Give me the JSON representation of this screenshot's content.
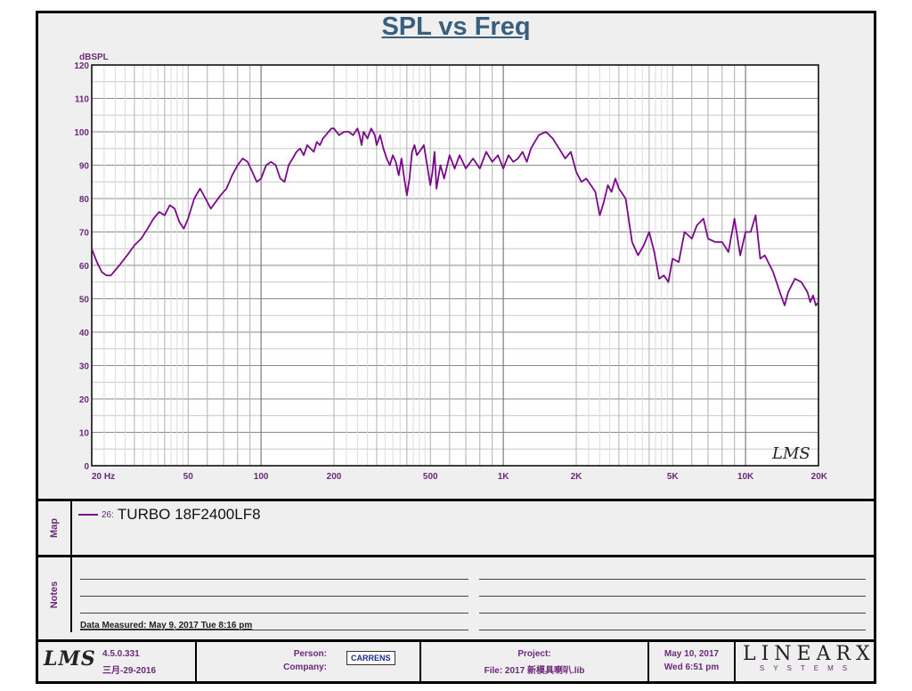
{
  "chart_data": {
    "type": "line",
    "title": "SPL vs Freq",
    "ylabel": "dBSPL",
    "xlabel": "",
    "x_scale": "log",
    "xlim": [
      20,
      20000
    ],
    "ylim": [
      0,
      120
    ],
    "y_ticks": [
      "0",
      "10",
      "20",
      "30",
      "40",
      "50",
      "60",
      "70",
      "80",
      "90",
      "100",
      "110",
      "120"
    ],
    "x_ticks": [
      {
        "value": 20,
        "label": "20  Hz"
      },
      {
        "value": 50,
        "label": "50"
      },
      {
        "value": 100,
        "label": "100"
      },
      {
        "value": 200,
        "label": "200"
      },
      {
        "value": 500,
        "label": "500"
      },
      {
        "value": 1000,
        "label": "1K"
      },
      {
        "value": 2000,
        "label": "2K"
      },
      {
        "value": 5000,
        "label": "5K"
      },
      {
        "value": 10000,
        "label": "10K"
      },
      {
        "value": 20000,
        "label": "20K"
      }
    ],
    "grid": true,
    "series": [
      {
        "name": "TURBO 18F2400LF8",
        "color": "#7a0a8a",
        "points": [
          [
            20,
            65
          ],
          [
            21,
            61
          ],
          [
            22,
            58
          ],
          [
            23,
            57
          ],
          [
            24,
            57
          ],
          [
            26,
            60
          ],
          [
            28,
            63
          ],
          [
            30,
            66
          ],
          [
            32,
            68
          ],
          [
            34,
            71
          ],
          [
            36,
            74
          ],
          [
            38,
            76
          ],
          [
            40,
            75
          ],
          [
            42,
            78
          ],
          [
            44,
            77
          ],
          [
            46,
            73
          ],
          [
            48,
            71
          ],
          [
            50,
            74
          ],
          [
            53,
            80
          ],
          [
            56,
            83
          ],
          [
            59,
            80
          ],
          [
            62,
            77
          ],
          [
            65,
            79
          ],
          [
            68,
            81
          ],
          [
            72,
            83
          ],
          [
            76,
            87
          ],
          [
            80,
            90
          ],
          [
            84,
            92
          ],
          [
            88,
            91
          ],
          [
            92,
            88
          ],
          [
            96,
            85
          ],
          [
            100,
            86
          ],
          [
            105,
            90
          ],
          [
            110,
            91
          ],
          [
            115,
            90
          ],
          [
            120,
            86
          ],
          [
            125,
            85
          ],
          [
            130,
            90
          ],
          [
            135,
            92
          ],
          [
            140,
            94
          ],
          [
            145,
            95
          ],
          [
            150,
            93
          ],
          [
            155,
            96
          ],
          [
            160,
            95
          ],
          [
            165,
            94
          ],
          [
            170,
            97
          ],
          [
            175,
            96
          ],
          [
            180,
            98
          ],
          [
            185,
            99
          ],
          [
            190,
            100
          ],
          [
            195,
            101
          ],
          [
            200,
            101
          ],
          [
            210,
            99
          ],
          [
            220,
            100
          ],
          [
            230,
            100
          ],
          [
            240,
            99
          ],
          [
            250,
            101
          ],
          [
            255,
            99
          ],
          [
            260,
            96
          ],
          [
            265,
            100
          ],
          [
            275,
            98
          ],
          [
            285,
            101
          ],
          [
            295,
            99
          ],
          [
            300,
            96
          ],
          [
            310,
            99
          ],
          [
            320,
            95
          ],
          [
            330,
            92
          ],
          [
            340,
            90
          ],
          [
            350,
            93
          ],
          [
            360,
            91
          ],
          [
            370,
            87
          ],
          [
            380,
            92
          ],
          [
            390,
            86
          ],
          [
            400,
            81
          ],
          [
            410,
            86
          ],
          [
            420,
            94
          ],
          [
            430,
            96
          ],
          [
            440,
            93
          ],
          [
            460,
            95
          ],
          [
            470,
            96
          ],
          [
            480,
            92
          ],
          [
            500,
            84
          ],
          [
            510,
            88
          ],
          [
            520,
            94
          ],
          [
            530,
            83
          ],
          [
            550,
            90
          ],
          [
            570,
            86
          ],
          [
            600,
            93
          ],
          [
            630,
            89
          ],
          [
            660,
            93
          ],
          [
            700,
            89
          ],
          [
            750,
            92
          ],
          [
            800,
            89
          ],
          [
            850,
            94
          ],
          [
            900,
            91
          ],
          [
            950,
            93
          ],
          [
            1000,
            89
          ],
          [
            1050,
            93
          ],
          [
            1100,
            91
          ],
          [
            1150,
            92
          ],
          [
            1200,
            94
          ],
          [
            1250,
            91
          ],
          [
            1300,
            95
          ],
          [
            1400,
            99
          ],
          [
            1500,
            100
          ],
          [
            1600,
            98
          ],
          [
            1700,
            95
          ],
          [
            1800,
            92
          ],
          [
            1900,
            94
          ],
          [
            2000,
            88
          ],
          [
            2100,
            85
          ],
          [
            2200,
            86
          ],
          [
            2300,
            84
          ],
          [
            2400,
            82
          ],
          [
            2500,
            75
          ],
          [
            2600,
            79
          ],
          [
            2700,
            84
          ],
          [
            2800,
            82
          ],
          [
            2900,
            86
          ],
          [
            3000,
            83
          ],
          [
            3200,
            80
          ],
          [
            3400,
            67
          ],
          [
            3600,
            63
          ],
          [
            3800,
            66
          ],
          [
            4000,
            70
          ],
          [
            4200,
            64
          ],
          [
            4400,
            56
          ],
          [
            4600,
            57
          ],
          [
            4800,
            55
          ],
          [
            5000,
            62
          ],
          [
            5300,
            61
          ],
          [
            5600,
            70
          ],
          [
            6000,
            68
          ],
          [
            6300,
            72
          ],
          [
            6700,
            74
          ],
          [
            7000,
            68
          ],
          [
            7500,
            67
          ],
          [
            8000,
            67
          ],
          [
            8500,
            64
          ],
          [
            9000,
            74
          ],
          [
            9500,
            63
          ],
          [
            10000,
            70
          ],
          [
            10500,
            70
          ],
          [
            11000,
            75
          ],
          [
            11500,
            62
          ],
          [
            12000,
            63
          ],
          [
            13000,
            58
          ],
          [
            14000,
            51
          ],
          [
            14500,
            48
          ],
          [
            15000,
            52
          ],
          [
            16000,
            56
          ],
          [
            17000,
            55
          ],
          [
            18000,
            52
          ],
          [
            18500,
            49
          ],
          [
            19000,
            51
          ],
          [
            19500,
            48
          ],
          [
            20000,
            49
          ]
        ]
      }
    ]
  },
  "legend": {
    "id": "26:",
    "name": "TURBO 18F2400LF8"
  },
  "sections": {
    "map_label": "Map",
    "notes_label": "Notes"
  },
  "notes": {
    "data_measured": "Data Measured: May  9, 2017  Tue  8:16 pm"
  },
  "watermark": "LMS",
  "footer": {
    "logo": "LMS",
    "version": "4.5.0.331",
    "version_date": "三月-29-2016",
    "person_label": "Person:",
    "company_label": "Company:",
    "company_logo_text": "CARRENS",
    "project_label": "Project:",
    "file_label": "File: 2017 新模具喇叭.lib",
    "date": "May 10, 2017",
    "time": "Wed  6:51 pm",
    "brand_big": "LINEARX",
    "brand_small": "SYSTEMS"
  },
  "colors": {
    "curve": "#7a0a8a",
    "axis_text": "#6a2a78",
    "title": "#3a5f7d"
  }
}
